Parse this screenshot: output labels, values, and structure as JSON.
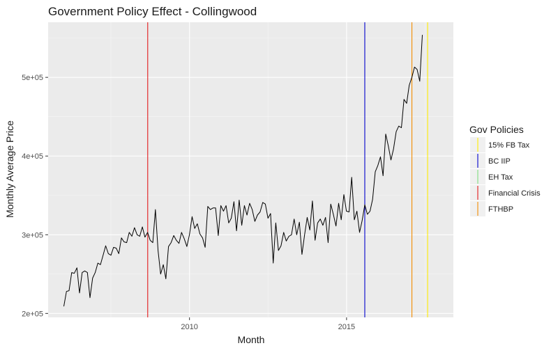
{
  "chart_data": {
    "type": "line",
    "title": "Government Policy Effect - Collingwood",
    "xlabel": "Month",
    "ylabel": "Monthly Average Price",
    "xlim": [
      2005.5,
      2018.4
    ],
    "ylim": [
      195000,
      570000
    ],
    "x_ticks": [
      {
        "value": 2010,
        "label": "2010"
      },
      {
        "value": 2015,
        "label": "2015"
      }
    ],
    "y_ticks": [
      {
        "value": 200000,
        "label": "2e+05"
      },
      {
        "value": 300000,
        "label": "3e+05"
      },
      {
        "value": 400000,
        "label": "4e+05"
      },
      {
        "value": 500000,
        "label": "5e+05"
      }
    ],
    "series": [
      {
        "color": "#000000",
        "start_year": 2006.0,
        "step_years": 0.0833,
        "values": [
          209000,
          228000,
          229000,
          252000,
          251000,
          258000,
          226000,
          252000,
          254000,
          252000,
          220000,
          245000,
          252000,
          264000,
          262000,
          274000,
          286000,
          276000,
          274000,
          284000,
          283000,
          276000,
          296000,
          291000,
          290000,
          303000,
          298000,
          309000,
          300000,
          298000,
          310000,
          297000,
          303000,
          293000,
          290000,
          332000,
          280000,
          250000,
          262000,
          244000,
          285000,
          290000,
          299000,
          293000,
          289000,
          303000,
          295000,
          285000,
          300000,
          323000,
          308000,
          314000,
          301000,
          296000,
          284000,
          336000,
          332000,
          334000,
          334000,
          299000,
          337000,
          330000,
          337000,
          315000,
          321000,
          342000,
          305000,
          344000,
          312000,
          337000,
          325000,
          340000,
          332000,
          317000,
          325000,
          329000,
          341000,
          339000,
          321000,
          327000,
          264000,
          315000,
          280000,
          286000,
          303000,
          292000,
          298000,
          300000,
          320000,
          300000,
          316000,
          275000,
          300000,
          322000,
          306000,
          343000,
          293000,
          315000,
          320000,
          312000,
          322000,
          290000,
          339000,
          326000,
          311000,
          340000,
          319000,
          351000,
          330000,
          329000,
          373000,
          319000,
          330000,
          303000,
          318000,
          338000,
          326000,
          330000,
          345000,
          380000,
          388000,
          399000,
          375000,
          428000,
          413000,
          395000,
          409000,
          431000,
          438000,
          436000,
          472000,
          467000,
          490000,
          500000,
          513000,
          510000,
          495000,
          554000
        ]
      }
    ],
    "events": [
      {
        "name": "Financial Crisis",
        "x": 2008.67,
        "color": "#e31a1c"
      },
      {
        "name": "BC IIP",
        "x": 2015.58,
        "color": "#0000cc"
      },
      {
        "name": "FTHBP",
        "x": 2017.08,
        "color": "#f28c00"
      },
      {
        "name": "15% FB Tax",
        "x": 2017.58,
        "color": "#ffee00"
      }
    ],
    "legend": {
      "title": "Gov Policies",
      "position": "right",
      "entries": [
        {
          "label": "15% FB Tax",
          "color": "#ffee00"
        },
        {
          "label": "BC IIP",
          "color": "#0000cc"
        },
        {
          "label": "EH Tax",
          "color": "#7fdc7f"
        },
        {
          "label": "Financial Crisis",
          "color": "#e31a1c"
        },
        {
          "label": "FTHBP",
          "color": "#f28c00"
        }
      ]
    },
    "grid": true,
    "panel_background": "#ebebeb"
  }
}
